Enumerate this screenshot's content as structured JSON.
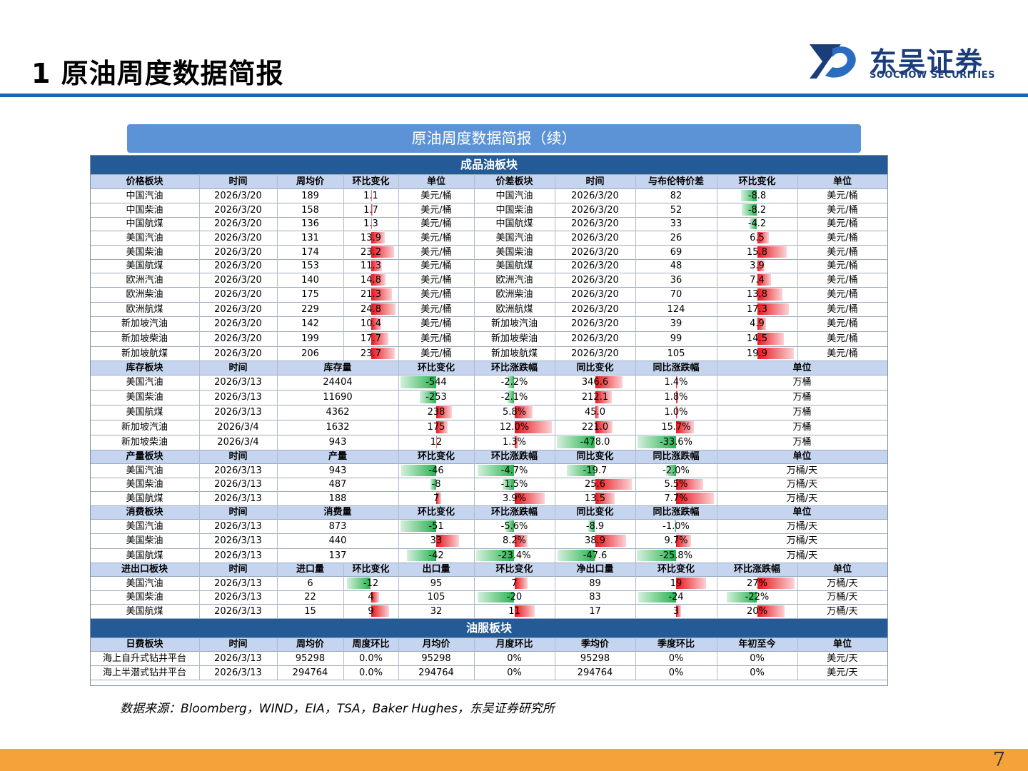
{
  "header": {
    "title": "1 原油周度数据简报",
    "logo_cn": "东吴证券",
    "logo_en": "SOOCHOW SECURITIES"
  },
  "banner": "原油周度数据简报（续）",
  "colors": {
    "accent": "#1f64b0",
    "banner": "#5b93d6",
    "section": "#245a95",
    "header_row": "#c6d5ef",
    "up": "#e8141b",
    "down": "#27b24f",
    "footer": "#f4a23a"
  },
  "refined": {
    "title": "成品油板块",
    "headers": [
      "价格板块",
      "时间",
      "周均价",
      "环比变化",
      "单位",
      "价差板块",
      "时间",
      "与布伦特价差",
      "环比变化",
      "单位"
    ],
    "rows": [
      [
        "中国汽油",
        "2026/3/20",
        "189",
        "1.1",
        "美元/桶",
        "中国汽油",
        "2026/3/20",
        "82",
        "-8.8",
        "美元/桶"
      ],
      [
        "中国柴油",
        "2026/3/20",
        "158",
        "1.7",
        "美元/桶",
        "中国柴油",
        "2026/3/20",
        "52",
        "-8.2",
        "美元/桶"
      ],
      [
        "中国航煤",
        "2026/3/20",
        "136",
        "1.3",
        "美元/桶",
        "中国航煤",
        "2026/3/20",
        "33",
        "-4.2",
        "美元/桶"
      ],
      [
        "美国汽油",
        "2026/3/20",
        "131",
        "13.9",
        "美元/桶",
        "美国汽油",
        "2026/3/20",
        "26",
        "6.5",
        "美元/桶"
      ],
      [
        "美国柴油",
        "2026/3/20",
        "174",
        "23.2",
        "美元/桶",
        "美国柴油",
        "2026/3/20",
        "69",
        "15.8",
        "美元/桶"
      ],
      [
        "美国航煤",
        "2026/3/20",
        "153",
        "11.3",
        "美元/桶",
        "美国航煤",
        "2026/3/20",
        "48",
        "3.9",
        "美元/桶"
      ],
      [
        "欧洲汽油",
        "2026/3/20",
        "140",
        "14.8",
        "美元/桶",
        "欧洲汽油",
        "2026/3/20",
        "36",
        "7.4",
        "美元/桶"
      ],
      [
        "欧洲柴油",
        "2026/3/20",
        "175",
        "21.3",
        "美元/桶",
        "欧洲柴油",
        "2026/3/20",
        "70",
        "13.8",
        "美元/桶"
      ],
      [
        "欧洲航煤",
        "2026/3/20",
        "229",
        "24.8",
        "美元/桶",
        "欧洲航煤",
        "2026/3/20",
        "124",
        "17.3",
        "美元/桶"
      ],
      [
        "新加坡汽油",
        "2026/3/20",
        "142",
        "10.4",
        "美元/桶",
        "新加坡汽油",
        "2026/3/20",
        "39",
        "4.9",
        "美元/桶"
      ],
      [
        "新加坡柴油",
        "2026/3/20",
        "199",
        "17.7",
        "美元/桶",
        "新加坡柴油",
        "2026/3/20",
        "99",
        "14.5",
        "美元/桶"
      ],
      [
        "新加坡航煤",
        "2026/3/20",
        "206",
        "23.7",
        "美元/桶",
        "新加坡航煤",
        "2026/3/20",
        "105",
        "19.9",
        "美元/桶"
      ]
    ]
  },
  "inventory": {
    "headers": [
      "库存板块",
      "时间",
      "库存量",
      "环比变化",
      "环比涨跌幅",
      "同比变化",
      "同比涨跌幅",
      "单位"
    ],
    "rows": [
      [
        "美国汽油",
        "2026/3/13",
        "24404",
        "-544",
        "-2.2%",
        "346.6",
        "1.4%",
        "万桶"
      ],
      [
        "美国柴油",
        "2026/3/13",
        "11690",
        "-253",
        "-2.1%",
        "212.1",
        "1.8%",
        "万桶"
      ],
      [
        "美国航煤",
        "2026/3/13",
        "4362",
        "238",
        "5.8%",
        "45.0",
        "1.0%",
        "万桶"
      ],
      [
        "新加坡汽油",
        "2026/3/4",
        "1632",
        "175",
        "12.0%",
        "221.0",
        "15.7%",
        "万桶"
      ],
      [
        "新加坡柴油",
        "2026/3/4",
        "943",
        "12",
        "1.3%",
        "-478.0",
        "-33.6%",
        "万桶"
      ]
    ]
  },
  "production": {
    "headers": [
      "产量板块",
      "时间",
      "产量",
      "环比变化",
      "环比涨跌幅",
      "同比变化",
      "同比涨跌幅",
      "单位"
    ],
    "rows": [
      [
        "美国汽油",
        "2026/3/13",
        "943",
        "-46",
        "-4.7%",
        "-19.7",
        "-2.0%",
        "万桶/天"
      ],
      [
        "美国柴油",
        "2026/3/13",
        "487",
        "-8",
        "-1.5%",
        "25.6",
        "5.5%",
        "万桶/天"
      ],
      [
        "美国航煤",
        "2026/3/13",
        "188",
        "7",
        "3.9%",
        "13.5",
        "7.7%",
        "万桶/天"
      ]
    ]
  },
  "consumption": {
    "headers": [
      "消费板块",
      "时间",
      "消费量",
      "环比变化",
      "环比涨跌幅",
      "同比变化",
      "同比涨跌幅",
      "单位"
    ],
    "rows": [
      [
        "美国汽油",
        "2026/3/13",
        "873",
        "-51",
        "-5.6%",
        "-8.9",
        "-1.0%",
        "万桶/天"
      ],
      [
        "美国柴油",
        "2026/3/13",
        "440",
        "33",
        "8.2%",
        "38.9",
        "9.7%",
        "万桶/天"
      ],
      [
        "美国航煤",
        "2026/3/13",
        "137",
        "-42",
        "-23.4%",
        "-47.6",
        "-25.8%",
        "万桶/天"
      ]
    ]
  },
  "trade": {
    "headers": [
      "进出口板块",
      "时间",
      "进口量",
      "环比变化",
      "出口量",
      "环比变化",
      "净出口量",
      "环比变化",
      "环比涨跌幅",
      "单位"
    ],
    "rows": [
      [
        "美国汽油",
        "2026/3/13",
        "6",
        "-12",
        "95",
        "7",
        "89",
        "19",
        "27%",
        "万桶/天"
      ],
      [
        "美国柴油",
        "2026/3/13",
        "22",
        "4",
        "105",
        "-20",
        "83",
        "-24",
        "-22%",
        "万桶/天"
      ],
      [
        "美国航煤",
        "2026/3/13",
        "15",
        "9",
        "32",
        "11",
        "17",
        "3",
        "20%",
        "万桶/天"
      ]
    ]
  },
  "oilservice": {
    "title": "油服板块",
    "headers": [
      "日费板块",
      "时间",
      "周均价",
      "周度环比",
      "月均价",
      "月度环比",
      "季均价",
      "季度环比",
      "年初至今",
      "单位"
    ],
    "rows": [
      [
        "海上自升式钻井平台",
        "2026/3/13",
        "95298",
        "0.0%",
        "95298",
        "0%",
        "95298",
        "0%",
        "0%",
        "美元/天"
      ],
      [
        "海上半潜式钻井平台",
        "2026/3/13",
        "294764",
        "0.0%",
        "294764",
        "0%",
        "294764",
        "0%",
        "0%",
        "美元/天"
      ]
    ]
  },
  "source": "数据来源：Bloomberg，WIND，EIA，TSA，Baker Hughes，东吴证券研究所",
  "page_number": "7"
}
